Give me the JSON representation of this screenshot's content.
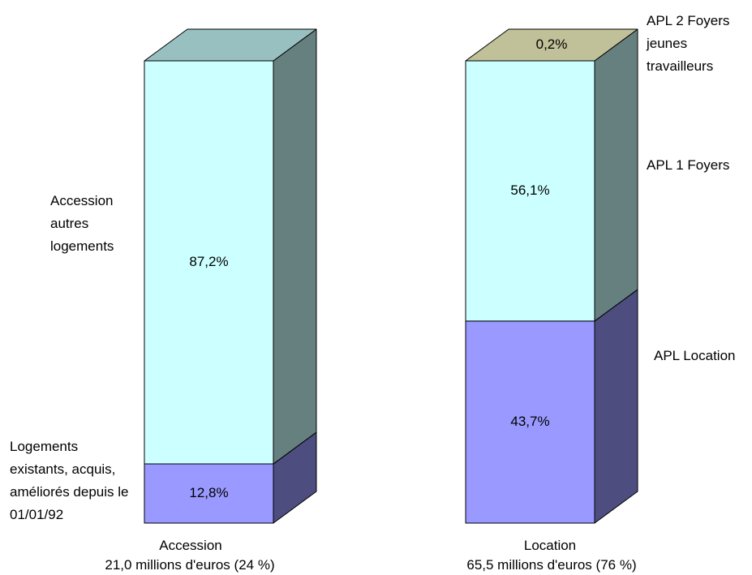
{
  "chart_data": {
    "type": "bar",
    "stacked": true,
    "three_d": true,
    "unit": "%",
    "categories": [
      {
        "name": "Accession",
        "total_label": "21,0 millions d'euros  (24 %)",
        "segments": [
          {
            "name_lines": [
              "Logements",
              "existants, acquis,",
              "améliorés depuis le",
              "01/01/92"
            ],
            "value": 12.8,
            "label": "12,8%",
            "color": "#9999ff",
            "side_color": "#4d4d80"
          },
          {
            "name_lines": [
              "Accession",
              "autres",
              "logements"
            ],
            "value": 87.2,
            "label": "87,2%",
            "color": "#ccffff",
            "side_color": "#668080",
            "top_color": "#99c0c0"
          }
        ]
      },
      {
        "name": "Location",
        "total_label": "65,5 millions d'euros (76 %)",
        "segments": [
          {
            "name_lines": [
              "APL Location"
            ],
            "value": 43.7,
            "label": "43,7%",
            "color": "#9999ff",
            "side_color": "#4d4d80"
          },
          {
            "name_lines": [
              "APL 1 Foyers"
            ],
            "value": 56.1,
            "label": "56,1%",
            "color": "#ccffff",
            "side_color": "#668080"
          },
          {
            "name_lines": [
              "APL 2 Foyers",
              "jeunes",
              "travailleurs"
            ],
            "value": 0.2,
            "label": "0,2%",
            "color": "#c0c099",
            "top_color": "#c0c099"
          }
        ]
      }
    ]
  }
}
